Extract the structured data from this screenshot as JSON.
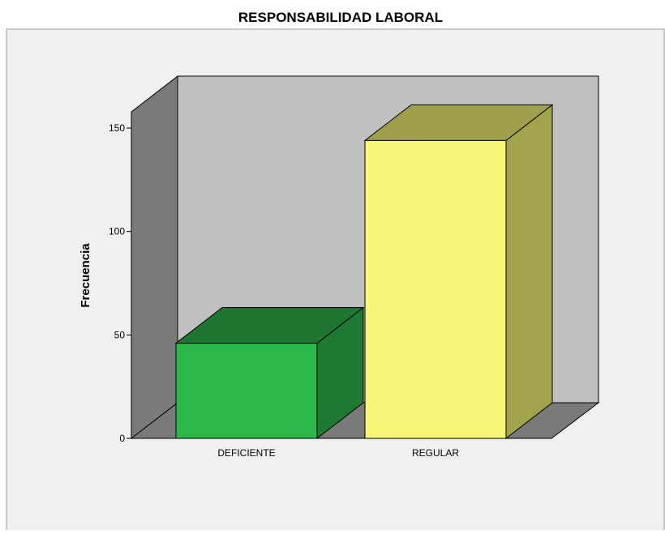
{
  "chart_data": {
    "type": "bar",
    "title": "RESPONSABILIDAD LABORAL",
    "xlabel": "",
    "ylabel": "Frecuencia",
    "categories": [
      "DEFICIENTE",
      "REGULAR"
    ],
    "values": [
      46,
      144
    ],
    "ylim": [
      0,
      150
    ],
    "yticks": [
      0,
      50,
      100,
      150
    ],
    "legend": "none",
    "grid": false,
    "three_d": true,
    "colors": {
      "bars": [
        {
          "front": "#2db84a",
          "side": "#1e7a33",
          "top": "#1f7631"
        },
        {
          "front": "#f8f679",
          "side": "#a2a34d",
          "top": "#9fa04b"
        }
      ],
      "back_wall": "#c0c0c0",
      "left_wall": "#7a7a7a",
      "floor": "#7a7a7a",
      "plot_background": "#f0f0f0"
    }
  }
}
